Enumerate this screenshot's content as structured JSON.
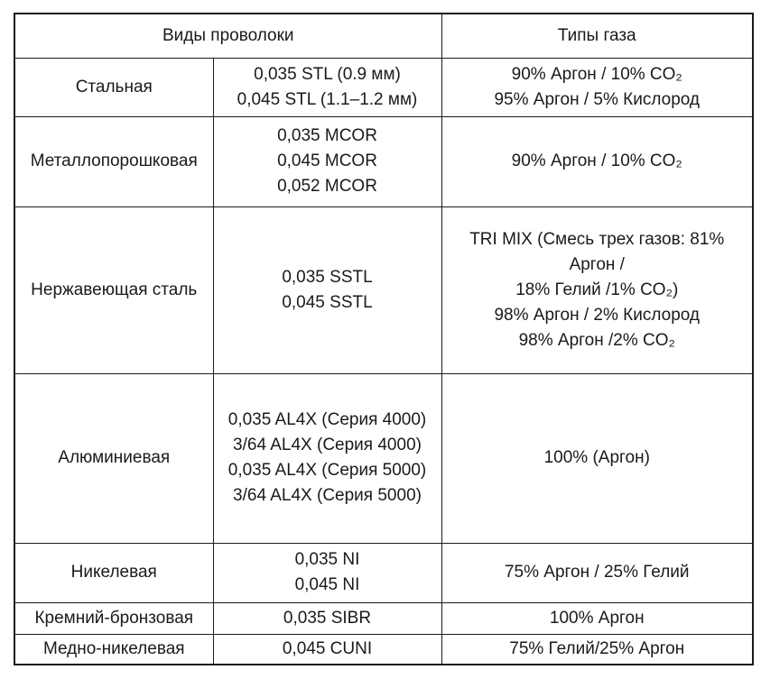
{
  "table": {
    "header": {
      "wire_types": "Виды проволоки",
      "gas_types": "Типы газа"
    },
    "rows": [
      {
        "wire_type": "Стальная",
        "wires": [
          "0,035 STL (0.9 мм)",
          "0,045 STL (1.1–1.2 мм)"
        ],
        "gases": [
          "90% Аргон / 10% CO₂",
          "95% Аргон / 5% Кислород"
        ]
      },
      {
        "wire_type": "Металлопорошковая",
        "wires": [
          "0,035 MCOR",
          "0,045 MCOR",
          "0,052 MCOR"
        ],
        "gases": [
          "90% Аргон / 10% CO₂"
        ]
      },
      {
        "wire_type": "Нержавеющая сталь",
        "wires": [
          "0,035 SSTL",
          "0,045 SSTL"
        ],
        "gases": [
          "TRI MIX (Смесь трех газов: 81%",
          "Аргон /",
          "18% Гелий /1% CO₂)",
          "98% Аргон / 2% Кислород",
          "98% Аргон /2% CO₂"
        ]
      },
      {
        "wire_type": "Алюминиевая",
        "wires": [
          "0,035 AL4X (Серия 4000)",
          "3/64 AL4X (Серия 4000)",
          "0,035 AL4X (Серия 5000)",
          "3/64 AL4X (Серия 5000)"
        ],
        "gases": [
          "100% (Аргон)"
        ]
      },
      {
        "wire_type": "Никелевая",
        "wires": [
          "0,035 NI",
          "0,045 NI"
        ],
        "gases": [
          "75% Аргон / 25% Гелий"
        ]
      },
      {
        "wire_type": "Кремний-бронзовая",
        "wires": [
          "0,035 SIBR"
        ],
        "gases": [
          "100% Аргон"
        ]
      },
      {
        "wire_type": "Медно-никелевая",
        "wires": [
          "0,045 CUNI"
        ],
        "gases": [
          "75% Гелий/25% Аргон"
        ]
      }
    ]
  }
}
